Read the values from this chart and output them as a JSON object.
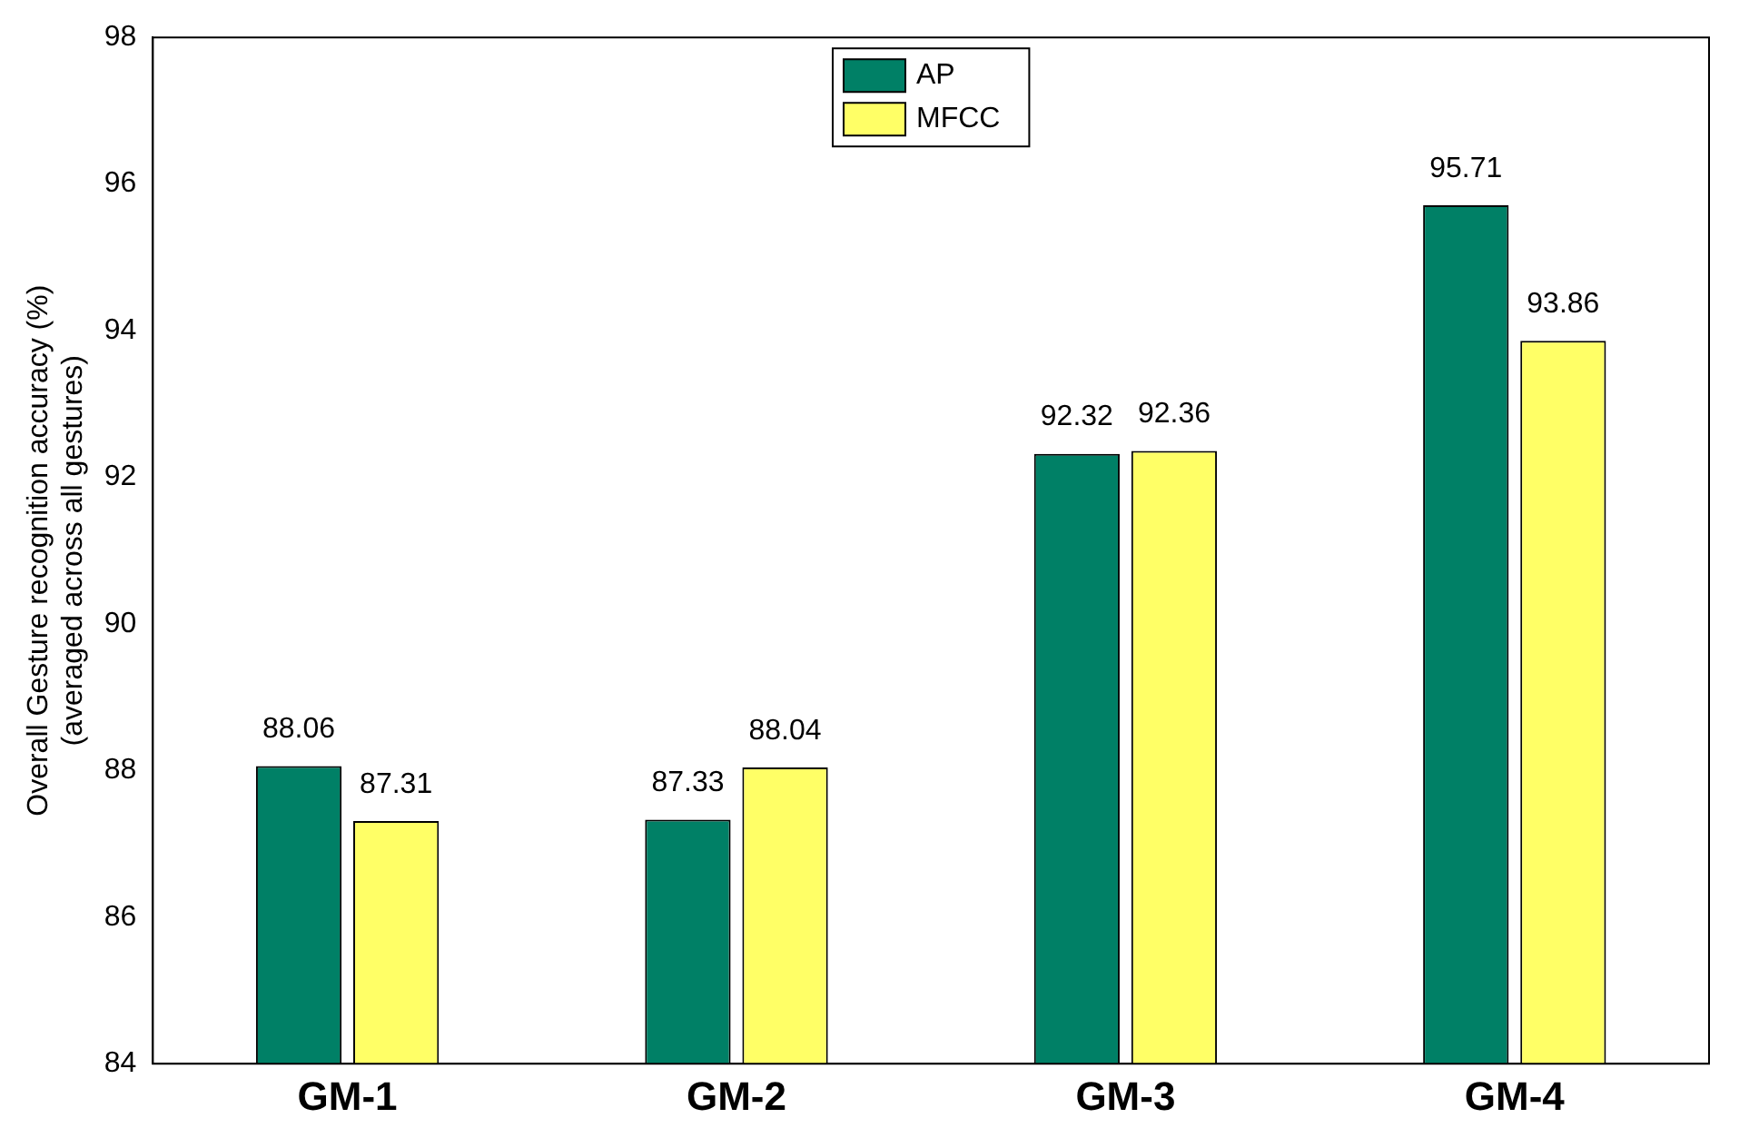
{
  "chart_data": {
    "type": "bar",
    "ylabel": "Overall Gesture recognition accuracy (%)\n(averaged across all gestures)",
    "categories": [
      "GM-1",
      "GM-2",
      "GM-3",
      "GM-4"
    ],
    "series": [
      {
        "name": "AP",
        "color": "#008066",
        "values": [
          88.06,
          87.33,
          92.32,
          95.71
        ]
      },
      {
        "name": "MFCC",
        "color": "#ffff66",
        "values": [
          87.31,
          88.04,
          92.36,
          93.86
        ]
      }
    ],
    "ylim": [
      84,
      98
    ],
    "yticks": [
      84,
      86,
      88,
      90,
      92,
      94,
      96,
      98
    ],
    "data_labels": true,
    "legend": "top",
    "grid": false
  }
}
